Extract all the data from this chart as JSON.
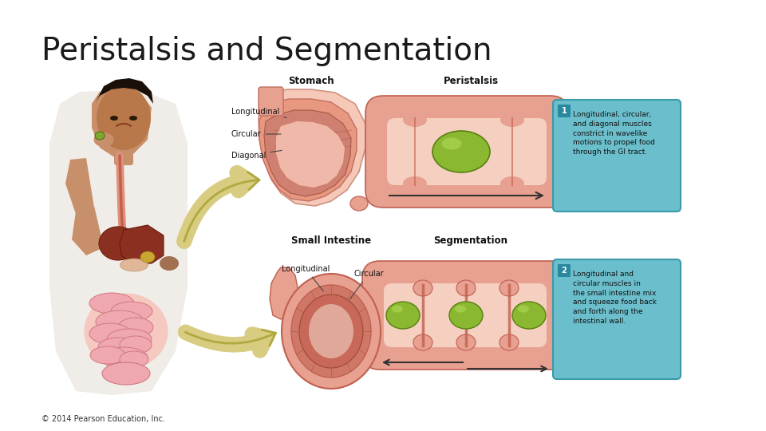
{
  "title": "Peristalsis and Segmentation",
  "title_fontsize": 28,
  "title_color": "#1a1a1a",
  "copyright_text": "© 2014 Pearson Education, Inc.",
  "copyright_fontsize": 7,
  "copyright_color": "#333333",
  "background_color": "#ffffff",
  "label_stomach": "Stomach",
  "label_peristalsis": "Peristalsis",
  "label_small_intestine": "Small Intestine",
  "label_segmentation": "Segmentation",
  "label_longitudinal_1": "Longitudinal",
  "label_circular_1": "Circular",
  "label_diagonal": "Diagonal",
  "label_longitudinal_2": "Longitudinal",
  "label_circular_2": "Circular",
  "box1_text": "1  Longitudinal, circular,\nand diagonal muscles\nconstrict in wavelike\nmotions to propel food\nthrough the GI tract.",
  "box2_text": "2  Longitudinal and\ncircular muscles in\nthe small intestine mix\nand squeeze food back\nand forth along the\nintestinal wall.",
  "box1_color": "#6bbecb",
  "box2_color": "#6bbecb",
  "box_text_color": "#111111",
  "flesh_tone": "#b8784a",
  "skin_dark": "#9a6030",
  "muscle_outer": "#e8a090",
  "muscle_mid": "#d07868",
  "muscle_inner": "#c06050",
  "lumen_color": "#f5cfc0",
  "bolus_green": "#8ab830",
  "bolus_dark": "#5a8010",
  "stomach_outer": "#f0b8a8",
  "stomach_mid": "#e09080",
  "stomach_inner": "#c87060",
  "liver_color": "#8b3a2a",
  "intestine_pink": "#f0a8b0",
  "intestine_edge": "#d07880",
  "arrow_tan": "#d8cc80",
  "arrow_tan_dark": "#b0a840",
  "shirt_color": "#f0ece8",
  "shirt_edge": "#c8c4b8"
}
